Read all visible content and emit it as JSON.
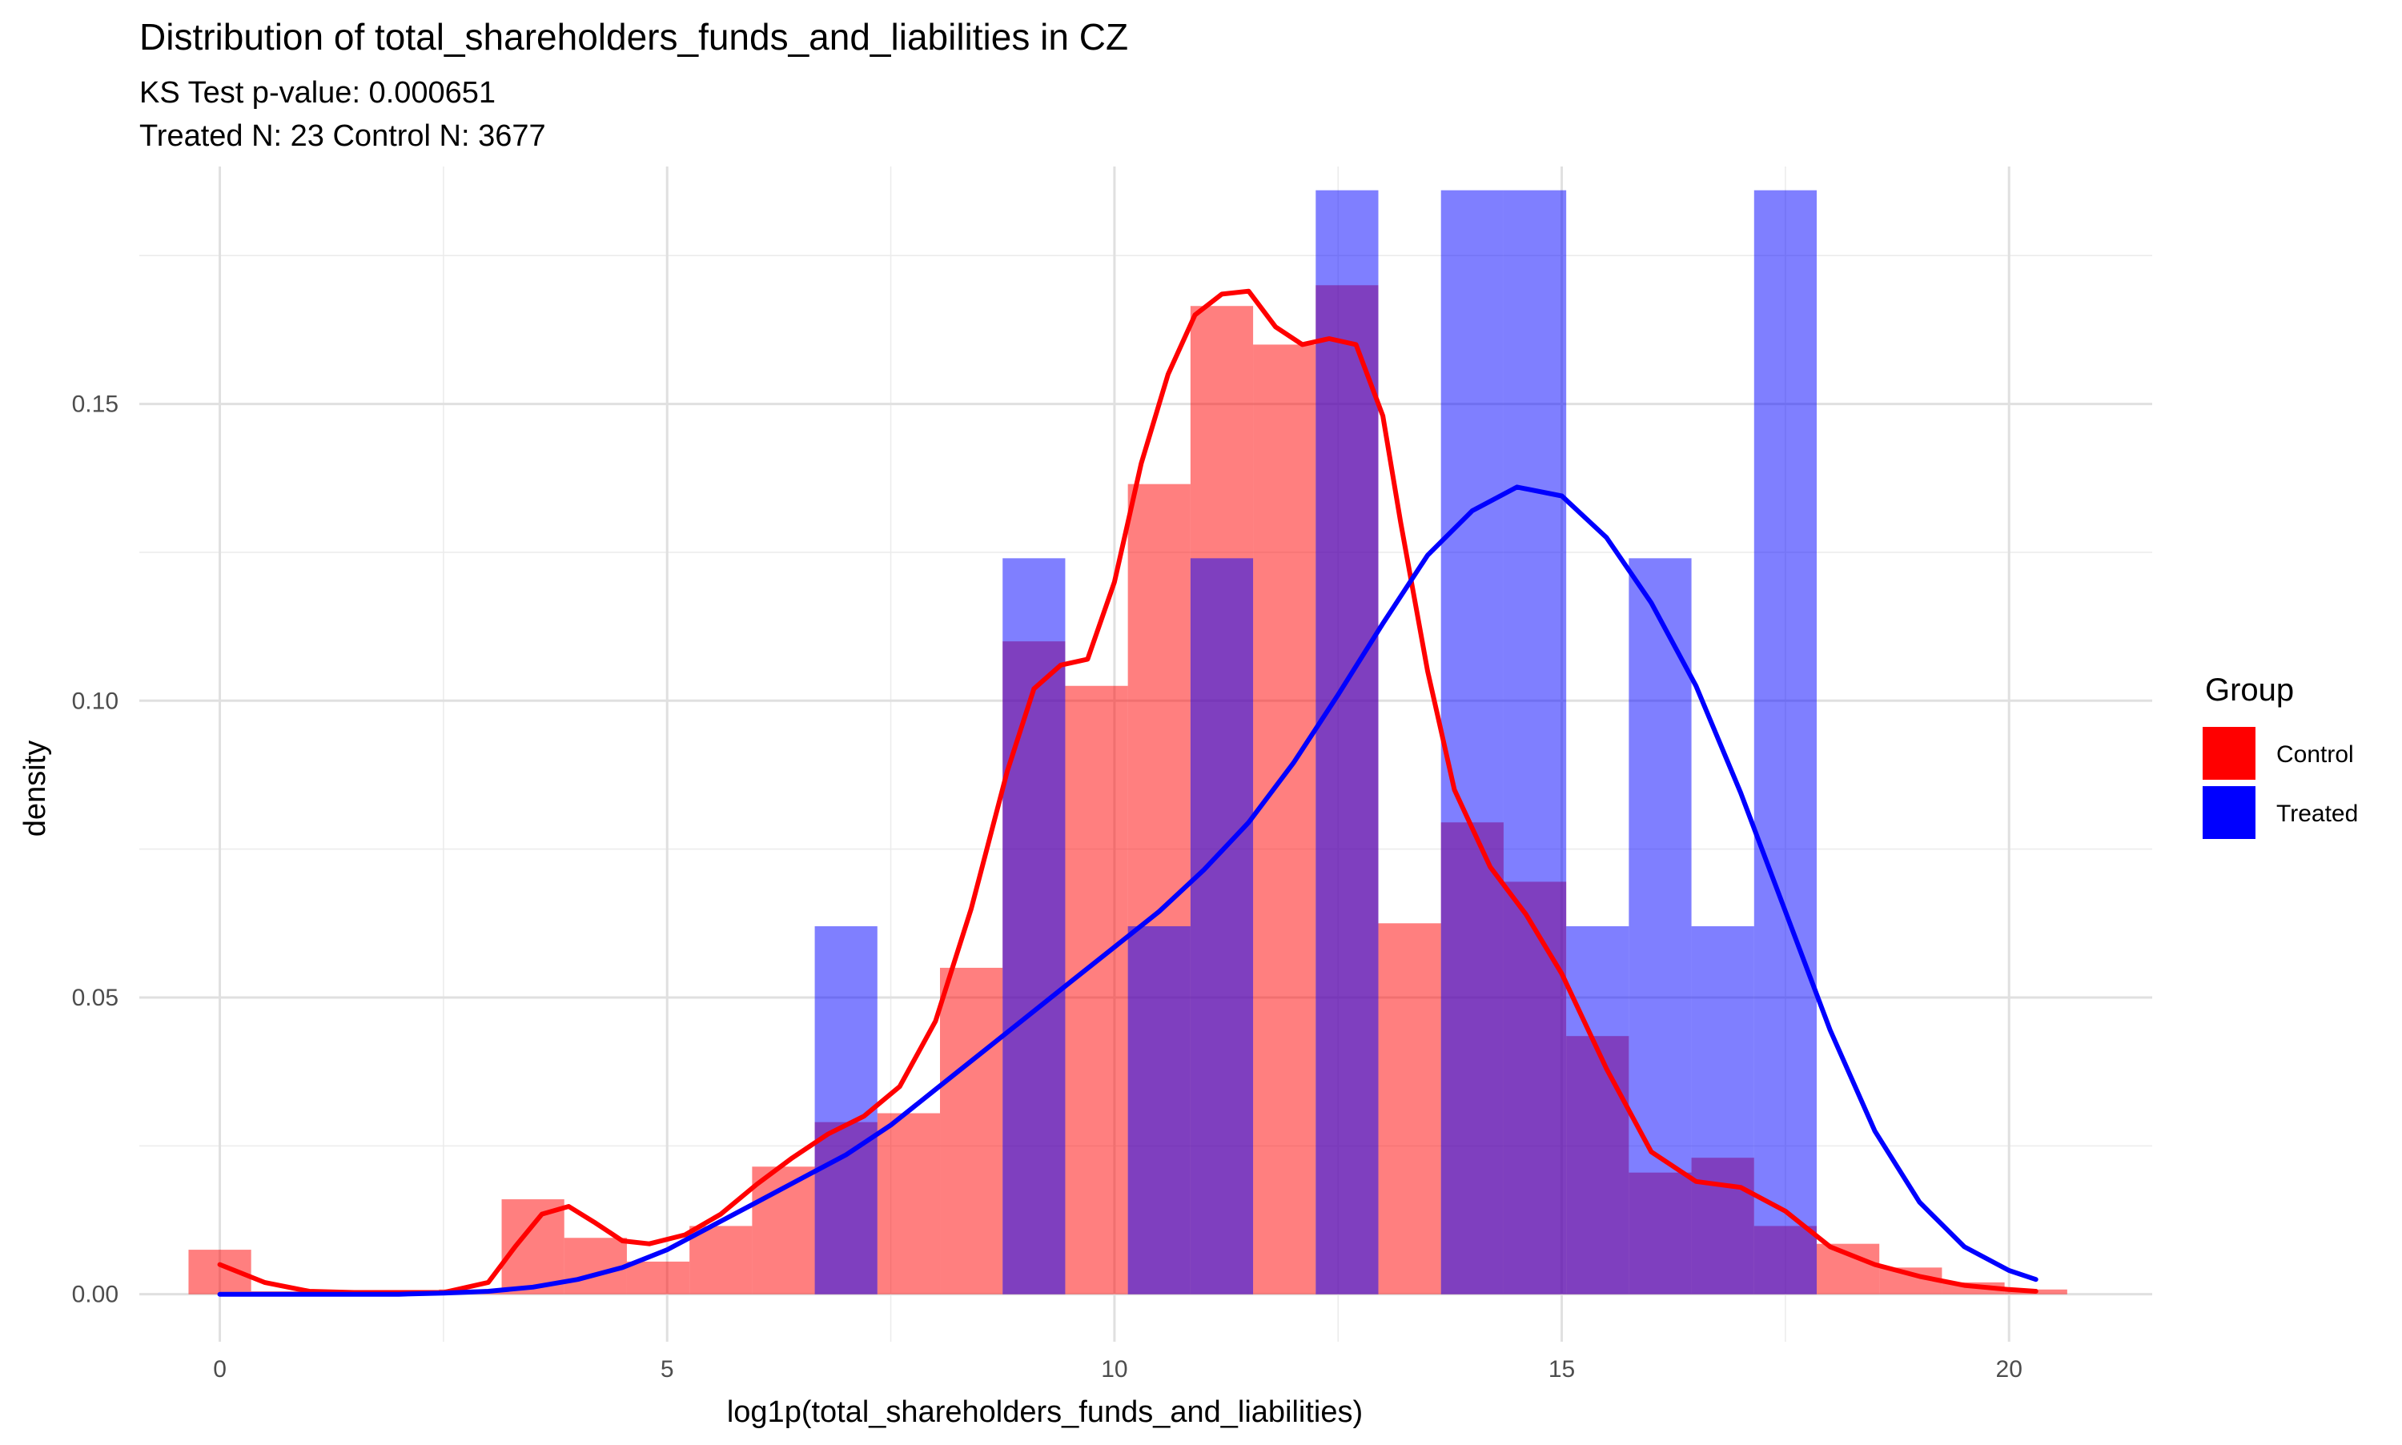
{
  "chart_data": {
    "type": "histogram",
    "title": "Distribution of total_shareholders_funds_and_liabilities in CZ",
    "subtitle_lines": [
      "KS Test p-value: 0.000651",
      "Treated N: 23 Control N: 3677"
    ],
    "xlabel": "log1p(total_shareholders_funds_and_liabilities)",
    "ylabel": "density",
    "xlim": [
      -0.9,
      21.6
    ],
    "ylim": [
      -0.008,
      0.19
    ],
    "x_ticks": [
      0,
      5,
      10,
      15,
      20
    ],
    "x_tick_labels": [
      "0",
      "5",
      "10",
      "15",
      "20"
    ],
    "y_ticks": [
      0.0,
      0.05,
      0.1,
      0.15
    ],
    "y_tick_labels": [
      "0.00",
      "0.05",
      "0.10",
      "0.15"
    ],
    "grid": true,
    "legend": {
      "title": "Group",
      "position": "right",
      "entries": [
        {
          "name": "Control",
          "color": "#ff0000"
        },
        {
          "name": "Treated",
          "color": "#0000ff"
        }
      ]
    },
    "colors": {
      "Control": "#ff0000",
      "Treated": "#0000ff"
    },
    "bin_edges": [
      -0.35,
      0.35,
      1.05,
      1.75,
      2.45,
      3.15,
      3.85,
      4.55,
      5.25,
      5.95,
      6.65,
      7.35,
      8.05,
      8.75,
      9.45,
      10.15,
      10.85,
      11.55,
      12.25,
      12.95,
      13.65,
      14.35,
      15.05,
      15.75,
      16.45,
      17.15,
      17.85,
      18.55,
      19.25,
      19.95,
      20.65
    ],
    "histograms": [
      {
        "name": "Control",
        "values": [
          0.0075,
          0.0005,
          0.0003,
          0.0003,
          0.0008,
          0.016,
          0.0095,
          0.0055,
          0.0115,
          0.0215,
          0.029,
          0.0305,
          0.055,
          0.11,
          0.1025,
          0.1365,
          0.1665,
          0.16,
          0.17,
          0.0625,
          0.0795,
          0.0695,
          0.0435,
          0.0205,
          0.023,
          0.0115,
          0.0085,
          0.0045,
          0.002,
          0.0008
        ]
      },
      {
        "name": "Treated",
        "values": [
          0,
          0,
          0,
          0,
          0,
          0,
          0,
          0,
          0,
          0,
          0.062,
          0,
          0,
          0.124,
          0,
          0.062,
          0.124,
          0,
          0.186,
          0,
          0.186,
          0.186,
          0.062,
          0.124,
          0.062,
          0.186,
          0,
          0,
          0,
          0
        ]
      }
    ],
    "density_curves": [
      {
        "name": "Control",
        "x": [
          0,
          0.5,
          1,
          1.5,
          2,
          2.5,
          3,
          3.3,
          3.6,
          3.9,
          4.2,
          4.5,
          4.8,
          5.2,
          5.6,
          6,
          6.4,
          6.8,
          7.2,
          7.6,
          8,
          8.4,
          8.8,
          9.1,
          9.4,
          9.7,
          10,
          10.3,
          10.6,
          10.9,
          11.2,
          11.5,
          11.8,
          12.1,
          12.4,
          12.7,
          13,
          13.2,
          13.5,
          13.8,
          14.2,
          14.6,
          15,
          15.5,
          16,
          16.5,
          17,
          17.5,
          18,
          18.5,
          19,
          19.5,
          20,
          20.3
        ],
        "y": [
          0.005,
          0.002,
          0.0005,
          0.0003,
          0.0003,
          0.0003,
          0.002,
          0.008,
          0.0135,
          0.0148,
          0.012,
          0.009,
          0.0085,
          0.01,
          0.0135,
          0.0185,
          0.023,
          0.027,
          0.03,
          0.035,
          0.046,
          0.065,
          0.088,
          0.102,
          0.106,
          0.107,
          0.12,
          0.14,
          0.155,
          0.165,
          0.1685,
          0.169,
          0.163,
          0.16,
          0.161,
          0.16,
          0.148,
          0.13,
          0.105,
          0.085,
          0.072,
          0.064,
          0.054,
          0.038,
          0.024,
          0.019,
          0.018,
          0.014,
          0.008,
          0.005,
          0.003,
          0.0015,
          0.0008,
          0.0005
        ]
      },
      {
        "name": "Treated",
        "x": [
          0,
          1,
          2,
          2.5,
          3,
          3.5,
          4,
          4.5,
          5,
          5.5,
          6,
          6.5,
          7,
          7.5,
          8,
          8.5,
          9,
          9.5,
          10,
          10.5,
          11,
          11.5,
          12,
          12.5,
          13,
          13.5,
          14,
          14.5,
          15,
          15.5,
          16,
          16.5,
          17,
          17.5,
          18,
          18.5,
          19,
          19.5,
          20,
          20.3
        ],
        "y": [
          0,
          0,
          0,
          0.0002,
          0.0005,
          0.0012,
          0.0025,
          0.0045,
          0.0075,
          0.0115,
          0.0155,
          0.0195,
          0.0235,
          0.0285,
          0.0345,
          0.0405,
          0.0465,
          0.0525,
          0.0585,
          0.0645,
          0.0715,
          0.0795,
          0.0895,
          0.101,
          0.113,
          0.1245,
          0.132,
          0.136,
          0.1345,
          0.1275,
          0.1165,
          0.1025,
          0.0845,
          0.0645,
          0.0445,
          0.0275,
          0.0155,
          0.008,
          0.004,
          0.0025
        ]
      }
    ]
  }
}
